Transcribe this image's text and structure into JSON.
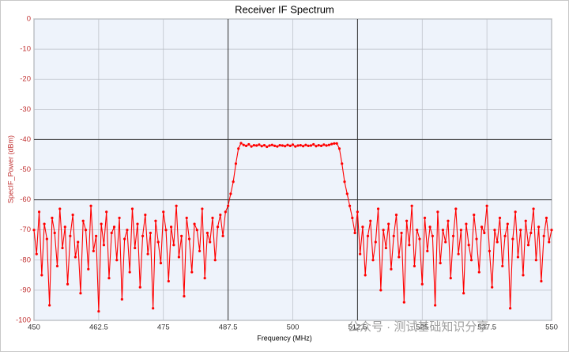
{
  "chart_data": {
    "type": "line",
    "title": "Receiver IF Spectrum",
    "x_label": "Frequency (MHz)",
    "y_label": "SpecIF_Power (dBm)",
    "watermark": "公众号 · 测试基础知识分享",
    "xlim": [
      450,
      550
    ],
    "ylim": [
      -100,
      0
    ],
    "xticks": [
      450,
      462.5,
      475,
      487.5,
      500,
      512.5,
      525,
      537.5,
      550
    ],
    "yticks": [
      0,
      -10,
      -20,
      -30,
      -40,
      -50,
      -60,
      -70,
      -80,
      -90,
      -100
    ],
    "grid": true,
    "highlight_x": [
      487.5,
      512.5
    ],
    "highlight_y": [
      -40,
      -60
    ],
    "x": [
      450,
      450.5,
      451,
      451.5,
      452,
      452.5,
      453,
      453.5,
      454,
      454.5,
      455,
      455.5,
      456,
      456.5,
      457,
      457.5,
      458,
      458.5,
      459,
      459.5,
      460,
      460.5,
      461,
      461.5,
      462,
      462.5,
      463,
      463.5,
      464,
      464.5,
      465,
      465.5,
      466,
      466.5,
      467,
      467.5,
      468,
      468.5,
      469,
      469.5,
      470,
      470.5,
      471,
      471.5,
      472,
      472.5,
      473,
      473.5,
      474,
      474.5,
      475,
      475.5,
      476,
      476.5,
      477,
      477.5,
      478,
      478.5,
      479,
      479.5,
      480,
      480.5,
      481,
      481.5,
      482,
      482.5,
      483,
      483.5,
      484,
      484.5,
      485,
      485.5,
      486,
      486.5,
      487,
      487.5,
      488,
      488.5,
      489,
      489.5,
      490,
      490.5,
      491,
      491.5,
      492,
      492.5,
      493,
      493.5,
      494,
      494.5,
      495,
      495.5,
      496,
      496.5,
      497,
      497.5,
      498,
      498.5,
      499,
      499.5,
      500,
      500.5,
      501,
      501.5,
      502,
      502.5,
      503,
      503.5,
      504,
      504.5,
      505,
      505.5,
      506,
      506.5,
      507,
      507.5,
      508,
      508.5,
      509,
      509.5,
      510,
      510.5,
      511,
      511.5,
      512,
      512.5,
      513,
      513.5,
      514,
      514.5,
      515,
      515.5,
      516,
      516.5,
      517,
      517.5,
      518,
      518.5,
      519,
      519.5,
      520,
      520.5,
      521,
      521.5,
      522,
      522.5,
      523,
      523.5,
      524,
      524.5,
      525,
      525.5,
      526,
      526.5,
      527,
      527.5,
      528,
      528.5,
      529,
      529.5,
      530,
      530.5,
      531,
      531.5,
      532,
      532.5,
      533,
      533.5,
      534,
      534.5,
      535,
      535.5,
      536,
      536.5,
      537,
      537.5,
      538,
      538.5,
      539,
      539.5,
      540,
      540.5,
      541,
      541.5,
      542,
      542.5,
      543,
      543.5,
      544,
      544.5,
      545,
      545.5,
      546,
      546.5,
      547,
      547.5,
      548,
      548.5,
      549,
      549.5,
      550
    ],
    "series": [
      {
        "name": "SpecIF_Power",
        "color": "#ff0000",
        "values": [
          -70,
          -78,
          -64,
          -85,
          -68,
          -73,
          -95,
          -66,
          -71,
          -82,
          -63,
          -76,
          -69,
          -88,
          -72,
          -65,
          -79,
          -74,
          -91,
          -67,
          -70,
          -83,
          -62,
          -77,
          -72,
          -97,
          -68,
          -75,
          -64,
          -86,
          -71,
          -69,
          -80,
          -66,
          -93,
          -73,
          -70,
          -84,
          -63,
          -76,
          -68,
          -89,
          -72,
          -65,
          -78,
          -71,
          -96,
          -67,
          -74,
          -81,
          -64,
          -70,
          -87,
          -69,
          -75,
          -62,
          -79,
          -72,
          -92,
          -66,
          -73,
          -84,
          -68,
          -70,
          -77,
          -63,
          -86,
          -71,
          -74,
          -66,
          -80,
          -69,
          -65,
          -72,
          -64,
          -62,
          -58,
          -54,
          -48,
          -43,
          -41.2,
          -41.8,
          -42.1,
          -41.6,
          -42.3,
          -41.9,
          -42.0,
          -41.7,
          -42.2,
          -41.9,
          -42.4,
          -42.0,
          -41.8,
          -42.1,
          -42.3,
          -41.9,
          -42.0,
          -42.2,
          -41.8,
          -42.1,
          -41.7,
          -42.3,
          -42.0,
          -41.9,
          -42.2,
          -41.8,
          -42.1,
          -42.0,
          -41.6,
          -42.2,
          -41.9,
          -42.1,
          -41.7,
          -42.0,
          -41.8,
          -41.5,
          -41.3,
          -41.3,
          -43,
          -48,
          -54,
          -58,
          -62,
          -66,
          -71,
          -64,
          -78,
          -69,
          -85,
          -72,
          -67,
          -80,
          -74,
          -63,
          -90,
          -70,
          -76,
          -68,
          -83,
          -72,
          -65,
          -79,
          -71,
          -94,
          -67,
          -75,
          -62,
          -82,
          -70,
          -73,
          -88,
          -66,
          -77,
          -69,
          -72,
          -95,
          -64,
          -81,
          -70,
          -74,
          -67,
          -86,
          -72,
          -63,
          -78,
          -70,
          -91,
          -68,
          -75,
          -80,
          -65,
          -73,
          -84,
          -69,
          -71,
          -62,
          -77,
          -89,
          -70,
          -74,
          -66,
          -82,
          -72,
          -68,
          -96,
          -73,
          -64,
          -79,
          -70,
          -85,
          -67,
          -75,
          -71,
          -63,
          -80,
          -69,
          -87,
          -72,
          -66,
          -74,
          -70
        ]
      }
    ]
  }
}
